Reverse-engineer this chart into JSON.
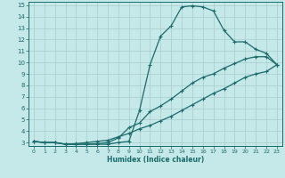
{
  "xlabel": "Humidex (Indice chaleur)",
  "xlim": [
    -0.5,
    23.5
  ],
  "ylim": [
    2.7,
    15.3
  ],
  "xticks": [
    0,
    1,
    2,
    3,
    4,
    5,
    6,
    7,
    8,
    9,
    10,
    11,
    12,
    13,
    14,
    15,
    16,
    17,
    18,
    19,
    20,
    21,
    22,
    23
  ],
  "yticks": [
    3,
    4,
    5,
    6,
    7,
    8,
    9,
    10,
    11,
    12,
    13,
    14,
    15
  ],
  "bg_color": "#c5e8e8",
  "line_color": "#1a6b6b",
  "grid_color": "#a8cccc",
  "line1_x": [
    0,
    1,
    2,
    3,
    4,
    5,
    6,
    7,
    8,
    9,
    10,
    11,
    12,
    13,
    14,
    15,
    16,
    17,
    18,
    19,
    20,
    21,
    22,
    23
  ],
  "line1_y": [
    3.1,
    3.0,
    3.0,
    2.85,
    2.85,
    2.85,
    2.85,
    2.85,
    3.0,
    3.1,
    5.8,
    9.8,
    12.3,
    13.2,
    14.85,
    14.95,
    14.85,
    14.5,
    12.8,
    11.8,
    11.8,
    11.15,
    10.8,
    9.8
  ],
  "line2_x": [
    0,
    1,
    2,
    3,
    4,
    5,
    6,
    7,
    8,
    9,
    10,
    11,
    12,
    13,
    14,
    15,
    16,
    17,
    18,
    19,
    20,
    21,
    22,
    23
  ],
  "line2_y": [
    3.1,
    3.0,
    3.0,
    2.85,
    2.85,
    2.85,
    2.9,
    3.0,
    3.4,
    4.3,
    4.7,
    5.7,
    6.2,
    6.8,
    7.5,
    8.2,
    8.7,
    9.0,
    9.5,
    9.9,
    10.3,
    10.5,
    10.5,
    9.8
  ],
  "line3_x": [
    0,
    1,
    2,
    3,
    4,
    5,
    6,
    7,
    8,
    9,
    10,
    11,
    12,
    13,
    14,
    15,
    16,
    17,
    18,
    19,
    20,
    21,
    22,
    23
  ],
  "line3_y": [
    3.1,
    3.0,
    3.0,
    2.85,
    2.9,
    3.0,
    3.1,
    3.2,
    3.5,
    3.8,
    4.2,
    4.5,
    4.9,
    5.3,
    5.8,
    6.3,
    6.8,
    7.3,
    7.7,
    8.2,
    8.7,
    9.0,
    9.2,
    9.8
  ]
}
